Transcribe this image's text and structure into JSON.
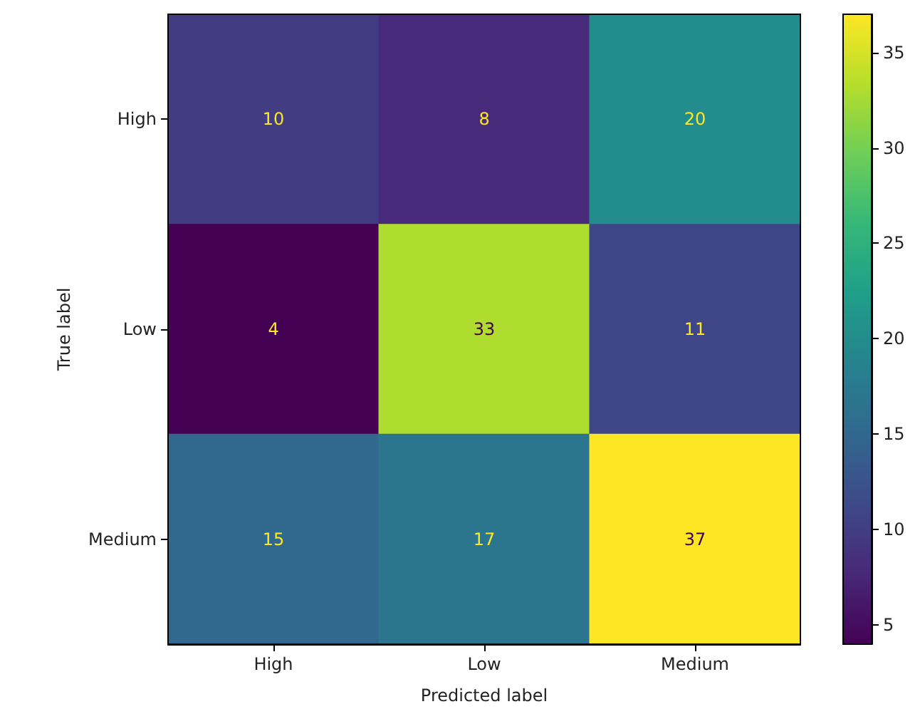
{
  "chart_data": {
    "type": "heatmap",
    "xlabel": "Predicted label",
    "ylabel": "True label",
    "categories": [
      "High",
      "Low",
      "Medium"
    ],
    "y_categories": [
      "High",
      "Low",
      "Medium"
    ],
    "cells": [
      [
        10,
        8,
        20
      ],
      [
        4,
        33,
        11
      ],
      [
        15,
        17,
        37
      ]
    ],
    "clim": [
      4,
      37
    ],
    "cticks": [
      5,
      10,
      15,
      20,
      25,
      30,
      35
    ],
    "data_labels": true
  }
}
